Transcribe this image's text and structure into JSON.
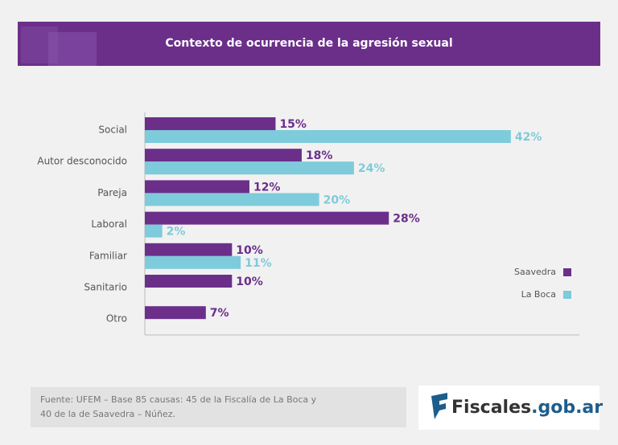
{
  "chart_data": {
    "type": "barh",
    "title": "Contexto de ocurrencia de la agresión sexual",
    "categories": [
      "Social",
      "Autor desconocido",
      "Pareja",
      "Laboral",
      "Familiar",
      "Sanitario",
      "Otro"
    ],
    "series": [
      {
        "name": "Saavedra",
        "color": "#6b2f8a",
        "values": [
          15,
          18,
          12,
          28,
          10,
          10,
          7
        ],
        "value_labels": [
          "15%",
          "18%",
          "12%",
          "28%",
          "10%",
          "10%",
          "7%"
        ]
      },
      {
        "name": "La Boca",
        "color": "#7ecbdb",
        "values": [
          42,
          24,
          20,
          2,
          11,
          null,
          null
        ],
        "value_labels": [
          "42%",
          "24%",
          "20%",
          "2%",
          "11%",
          null,
          null
        ]
      }
    ],
    "source": [
      "Fuente: UFEM – Base 85 causas: 45 de la Fiscalía de La Boca y",
      "40 de la de Saavedra – Núñez."
    ]
  },
  "logo": {
    "name": "Fiscales",
    "domain": ".gob.ar"
  }
}
